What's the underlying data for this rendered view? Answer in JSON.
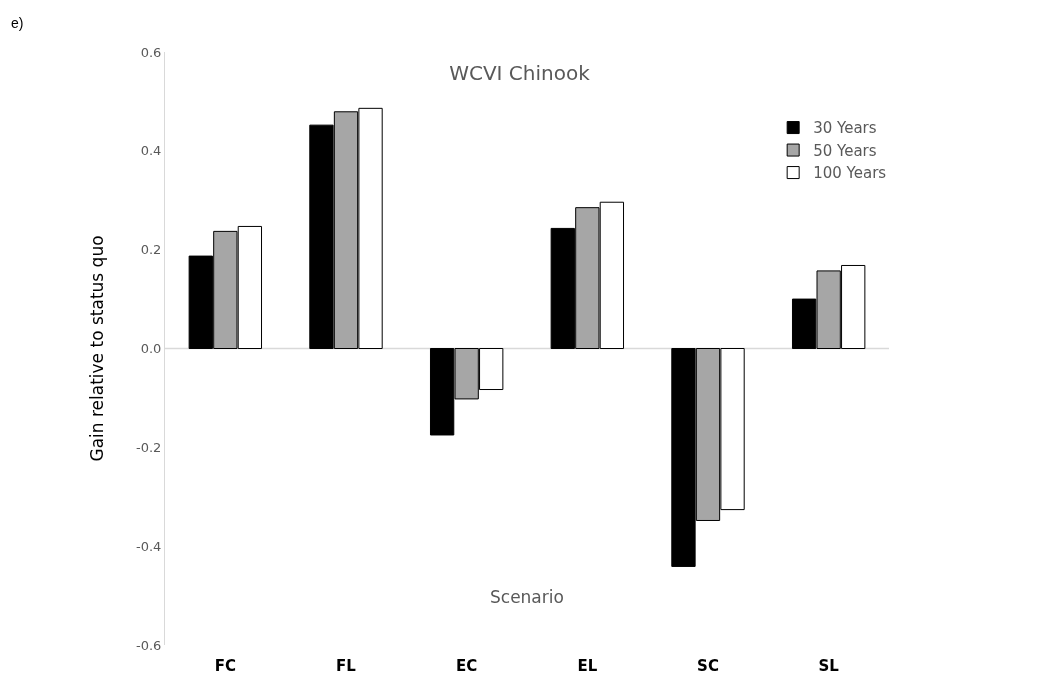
{
  "chart_data": {
    "type": "bar",
    "title": "WCVI Chinook",
    "xlabel": "Scenario",
    "ylabel": "Gain relative to status quo",
    "categories": [
      "FC",
      "FL",
      "EC",
      "EL",
      "SC",
      "SL"
    ],
    "series": [
      {
        "name": "30 Years",
        "color": "#000000",
        "values": [
          0.187,
          0.452,
          -0.175,
          0.243,
          -0.441,
          0.1
        ]
      },
      {
        "name": "50 Years",
        "color": "#a6a6a6",
        "values": [
          0.237,
          0.479,
          -0.102,
          0.285,
          -0.348,
          0.157
        ]
      },
      {
        "name": "100 Years",
        "color": "#ffffff",
        "values": [
          0.247,
          0.486,
          -0.083,
          0.296,
          -0.326,
          0.168
        ]
      }
    ],
    "ylim": [
      -0.6,
      0.6
    ],
    "yticks": [
      {
        "value": -0.6,
        "label": "-0.6"
      },
      {
        "value": -0.4,
        "label": "-0.4"
      },
      {
        "value": -0.2,
        "label": "-0.2"
      },
      {
        "value": 0,
        "label": "0.0"
      },
      {
        "value": 0.2,
        "label": "0.2"
      },
      {
        "value": 0.4,
        "label": "0.4"
      },
      {
        "value": 0.6,
        "label": "0.6"
      }
    ],
    "grid": false,
    "legend": "top right",
    "ref_lines": [
      {
        "axis": "y",
        "value": 0,
        "color": "#d9d9d9"
      }
    ],
    "annotations": [
      "e)"
    ]
  }
}
